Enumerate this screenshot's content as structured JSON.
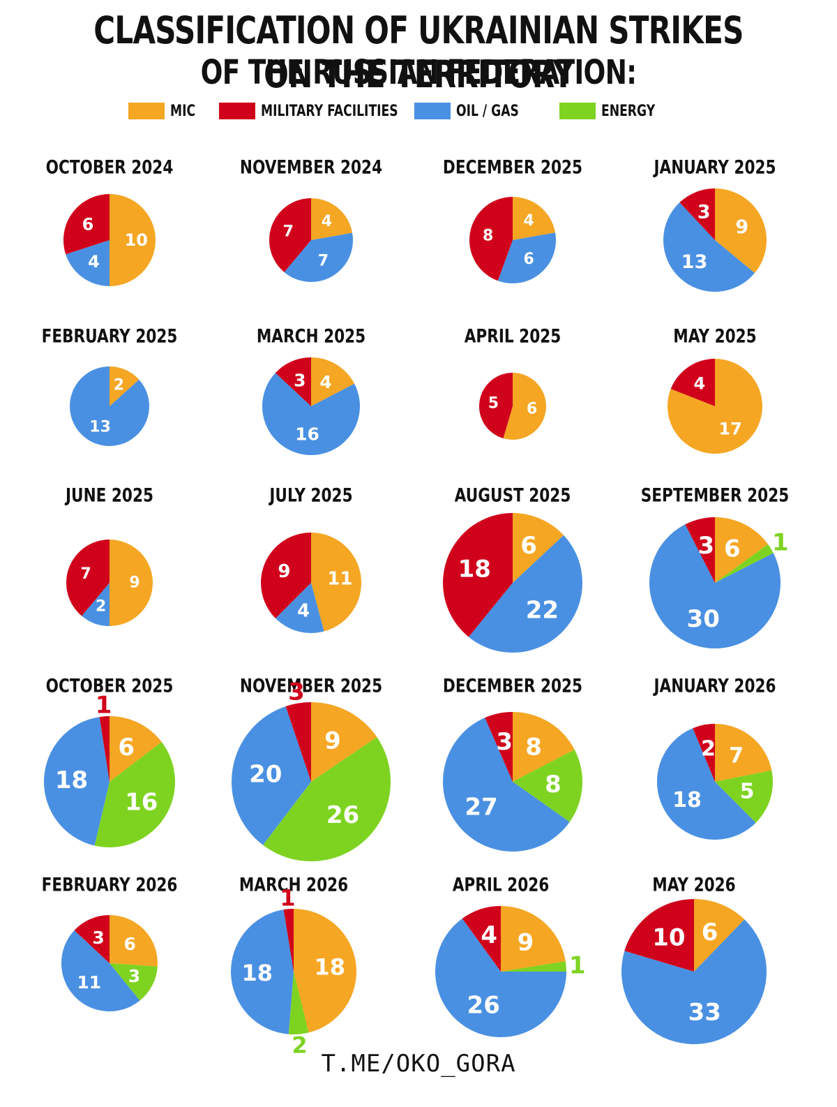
{
  "title_line1": "CLASSIFICATION OF UKRAINIAN STRIKES ON THE TERRITORY",
  "title_line2": "OF THE RUSSIAN FEDERATION:",
  "legend": [
    {
      "name": "MIC",
      "color": "#f5a623"
    },
    {
      "name": "MILITARY FACILITIES",
      "color": "#d0021b"
    },
    {
      "name": "OIL / GAS",
      "color": "#4a90e2"
    },
    {
      "name": "ENERGY",
      "color": "#7ed321"
    }
  ],
  "footer": "T.ME/OKO_GORA",
  "chart_data": [
    {
      "type": "pie",
      "title": "OCTOBER 2024",
      "series": [
        {
          "name": "MIC",
          "value": 10
        },
        {
          "name": "OIL / GAS",
          "value": 4
        },
        {
          "name": "MILITARY FACILITIES",
          "value": 6
        }
      ]
    },
    {
      "type": "pie",
      "title": "NOVEMBER 2024",
      "series": [
        {
          "name": "MIC",
          "value": 4
        },
        {
          "name": "OIL / GAS",
          "value": 7
        },
        {
          "name": "MILITARY FACILITIES",
          "value": 7
        }
      ]
    },
    {
      "type": "pie",
      "title": "DECEMBER 2025",
      "series": [
        {
          "name": "MIC",
          "value": 4
        },
        {
          "name": "OIL / GAS",
          "value": 6
        },
        {
          "name": "MILITARY FACILITIES",
          "value": 8
        }
      ]
    },
    {
      "type": "pie",
      "title": "JANUARY 2025",
      "series": [
        {
          "name": "MIC",
          "value": 9
        },
        {
          "name": "OIL / GAS",
          "value": 13
        },
        {
          "name": "MILITARY FACILITIES",
          "value": 3
        }
      ]
    },
    {
      "type": "pie",
      "title": "FEBRUARY 2025",
      "series": [
        {
          "name": "MIC",
          "value": 2
        },
        {
          "name": "OIL / GAS",
          "value": 13
        }
      ]
    },
    {
      "type": "pie",
      "title": "MARCH 2025",
      "series": [
        {
          "name": "MIC",
          "value": 4
        },
        {
          "name": "OIL / GAS",
          "value": 16
        },
        {
          "name": "MILITARY FACILITIES",
          "value": 3
        }
      ]
    },
    {
      "type": "pie",
      "title": "APRIL 2025",
      "series": [
        {
          "name": "MIC",
          "value": 6
        },
        {
          "name": "MILITARY FACILITIES",
          "value": 5
        }
      ]
    },
    {
      "type": "pie",
      "title": "MAY 2025",
      "series": [
        {
          "name": "MIC",
          "value": 17
        },
        {
          "name": "MILITARY FACILITIES",
          "value": 4
        }
      ]
    },
    {
      "type": "pie",
      "title": "JUNE 2025",
      "series": [
        {
          "name": "MIC",
          "value": 9
        },
        {
          "name": "OIL / GAS",
          "value": 2
        },
        {
          "name": "MILITARY FACILITIES",
          "value": 7
        }
      ]
    },
    {
      "type": "pie",
      "title": "JULY 2025",
      "series": [
        {
          "name": "MIC",
          "value": 11
        },
        {
          "name": "OIL / GAS",
          "value": 4
        },
        {
          "name": "MILITARY FACILITIES",
          "value": 9
        }
      ]
    },
    {
      "type": "pie",
      "title": "AUGUST 2025",
      "series": [
        {
          "name": "MIC",
          "value": 6
        },
        {
          "name": "OIL / GAS",
          "value": 22
        },
        {
          "name": "MILITARY FACILITIES",
          "value": 18
        }
      ]
    },
    {
      "type": "pie",
      "title": "SEPTEMBER 2025",
      "series": [
        {
          "name": "MIC",
          "value": 6
        },
        {
          "name": "ENERGY",
          "value": 1
        },
        {
          "name": "OIL / GAS",
          "value": 30
        },
        {
          "name": "MILITARY FACILITIES",
          "value": 3
        }
      ]
    },
    {
      "type": "pie",
      "title": "OCTOBER 2025",
      "series": [
        {
          "name": "MIC",
          "value": 6
        },
        {
          "name": "ENERGY",
          "value": 16
        },
        {
          "name": "OIL / GAS",
          "value": 18
        },
        {
          "name": "MILITARY FACILITIES",
          "value": 1
        }
      ]
    },
    {
      "type": "pie",
      "title": "NOVEMBER 2025",
      "series": [
        {
          "name": "MIC",
          "value": 9
        },
        {
          "name": "ENERGY",
          "value": 26
        },
        {
          "name": "OIL / GAS",
          "value": 20
        },
        {
          "name": "MILITARY FACILITIES",
          "value": 3
        }
      ]
    },
    {
      "type": "pie",
      "title": "DECEMBER 2025",
      "series": [
        {
          "name": "MIC",
          "value": 8
        },
        {
          "name": "ENERGY",
          "value": 8
        },
        {
          "name": "OIL / GAS",
          "value": 27
        },
        {
          "name": "MILITARY FACILITIES",
          "value": 3
        }
      ]
    },
    {
      "type": "pie",
      "title": "JANUARY 2026",
      "series": [
        {
          "name": "MIC",
          "value": 7
        },
        {
          "name": "ENERGY",
          "value": 5
        },
        {
          "name": "OIL / GAS",
          "value": 18
        },
        {
          "name": "MILITARY FACILITIES",
          "value": 2
        }
      ]
    },
    {
      "type": "pie",
      "title": "FEBRUARY 2026",
      "series": [
        {
          "name": "MIC",
          "value": 6
        },
        {
          "name": "ENERGY",
          "value": 3
        },
        {
          "name": "OIL / GAS",
          "value": 11
        },
        {
          "name": "MILITARY FACILITIES",
          "value": 3
        }
      ]
    },
    {
      "type": "pie",
      "title": "MARCH 2026",
      "series": [
        {
          "name": "MIC",
          "value": 18
        },
        {
          "name": "ENERGY",
          "value": 2
        },
        {
          "name": "OIL / GAS",
          "value": 18
        },
        {
          "name": "MILITARY FACILITIES",
          "value": 1
        }
      ]
    },
    {
      "type": "pie",
      "title": "APRIL 2026",
      "series": [
        {
          "name": "MIC",
          "value": 9
        },
        {
          "name": "ENERGY",
          "value": 1
        },
        {
          "name": "OIL / GAS",
          "value": 26
        },
        {
          "name": "MILITARY FACILITIES",
          "value": 4
        }
      ]
    },
    {
      "type": "pie",
      "title": "MAY 2026",
      "series": [
        {
          "name": "MIC",
          "value": 6
        },
        {
          "name": "OIL / GAS",
          "value": 33
        },
        {
          "name": "MILITARY FACILITIES",
          "value": 10
        }
      ]
    }
  ]
}
